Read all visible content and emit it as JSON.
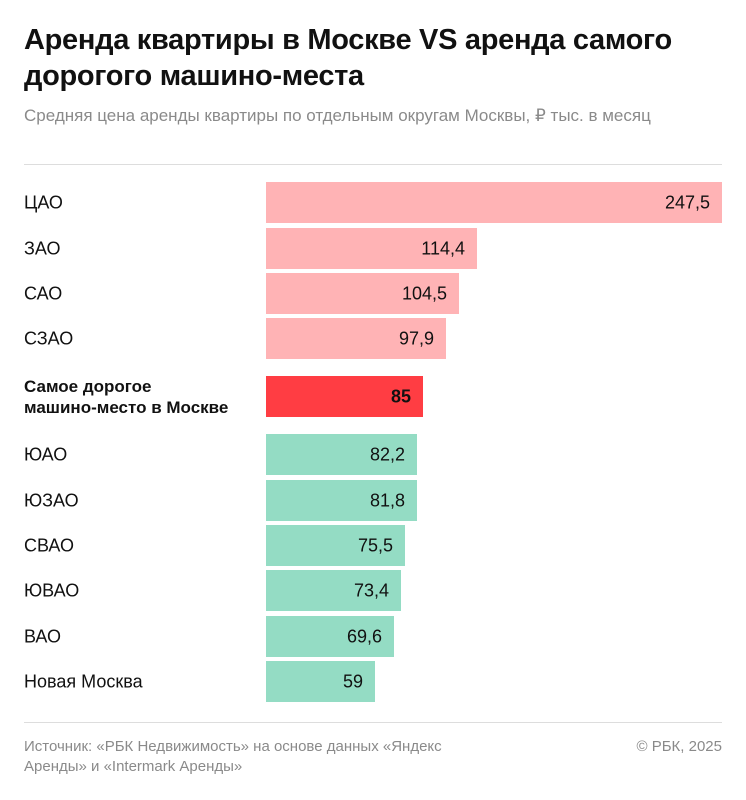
{
  "header": {
    "title": "Аренда квартиры в Москве VS аренда самого дорогого машино-места",
    "subtitle": "Средняя цена аренды квартиры по отдельным округам Москвы, ₽ тыс. в месяц"
  },
  "chart_data": {
    "type": "bar",
    "orientation": "horizontal",
    "title": "Аренда квартиры в Москве VS аренда самого дорогого машино-места",
    "subtitle": "Средняя цена аренды квартиры по отдельным округам Москвы, ₽ тыс. в месяц",
    "categories": [
      "ЦАО",
      "ЗАО",
      "САО",
      "СЗАО",
      "Самое дорогое машино-место в Москве",
      "ЮАО",
      "ЮЗАО",
      "СВАО",
      "ЮВАО",
      "ВАО",
      "Новая Москва"
    ],
    "category_lines": [
      [
        "ЦАО"
      ],
      [
        "ЗАО"
      ],
      [
        "САО"
      ],
      [
        "СЗАО"
      ],
      [
        "Самое дорогое",
        "машино-место в Москве"
      ],
      [
        "ЮАО"
      ],
      [
        "ЮЗАО"
      ],
      [
        "СВАО"
      ],
      [
        "ЮВАО"
      ],
      [
        "ВАО"
      ],
      [
        "Новая Москва"
      ]
    ],
    "values": [
      247.5,
      114.4,
      104.5,
      97.9,
      85,
      82.2,
      81.8,
      75.5,
      73.4,
      69.6,
      59
    ],
    "value_labels": [
      "247,5",
      "114,4",
      "104,5",
      "97,9",
      "85",
      "82,2",
      "81,8",
      "75,5",
      "73,4",
      "69,6",
      "59"
    ],
    "highlight_index": 4,
    "colors": {
      "above": "#ffb3b5",
      "highlight": "#ff3d43",
      "below": "#94dcc4"
    },
    "xlim": [
      0,
      247.5
    ],
    "xlabel": "",
    "ylabel": "",
    "grid": false,
    "legend": "none"
  },
  "footer": {
    "source": "Источник: «РБК Недвижимость» на основе данных «Яндекс Аренды» и «Intermark Аренды»",
    "copyright": "© РБК, 2025"
  }
}
